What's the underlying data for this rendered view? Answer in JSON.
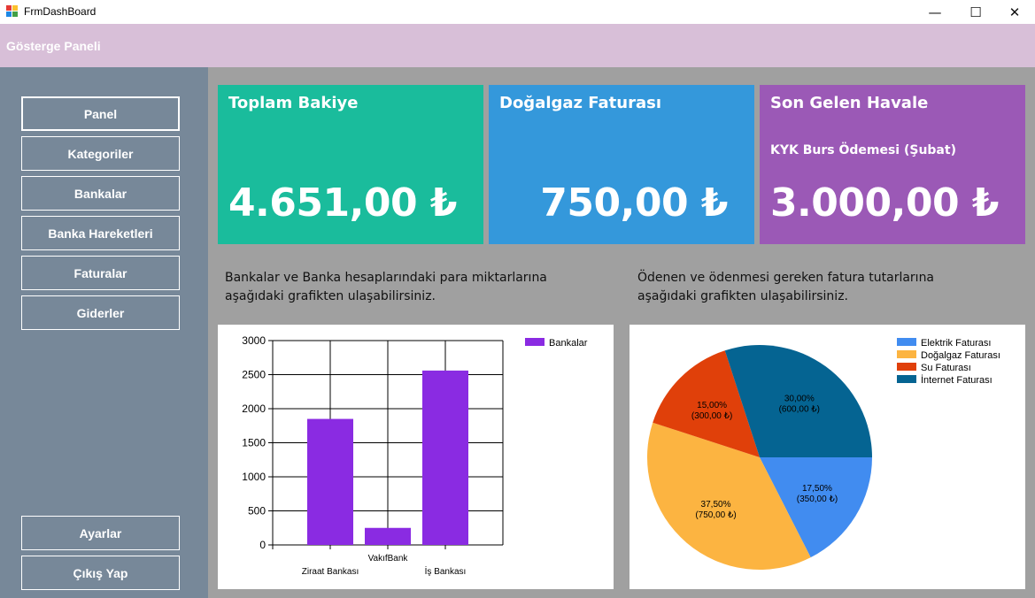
{
  "window": {
    "title": "FrmDashBoard",
    "minimize": "—",
    "maximize": "☐",
    "close": "✕"
  },
  "header": {
    "title": "Gösterge Paneli"
  },
  "sidebar": {
    "items": [
      {
        "label": "Panel"
      },
      {
        "label": "Kategoriler"
      },
      {
        "label": "Bankalar"
      },
      {
        "label": "Banka Hareketleri"
      },
      {
        "label": "Faturalar"
      },
      {
        "label": "Giderler"
      }
    ],
    "bottom": [
      {
        "label": "Ayarlar"
      },
      {
        "label": "Çıkış Yap"
      }
    ]
  },
  "cards": [
    {
      "title": "Toplam Bakiye",
      "subtitle": "",
      "value": "4.651,00 ₺",
      "color": "#1abc9c"
    },
    {
      "title": "Doğalgaz Faturası",
      "subtitle": "",
      "value": "750,00 ₺",
      "color": "#3498db"
    },
    {
      "title": "Son Gelen Havale",
      "subtitle": "KYK Burs Ödemesi (Şubat)",
      "value": "3.000,00 ₺",
      "color": "#9b59b6"
    }
  ],
  "descriptions": {
    "banks": [
      "Bankalar ve Banka hesaplarındaki para miktarlarına",
      "aşağıdaki grafikten ulaşabilirsiniz."
    ],
    "bills": [
      "Ödenen ve ödenmesi gereken fatura tutarlarına",
      "aşağıdaki grafikten ulaşabilirsiniz."
    ]
  },
  "chart_data": [
    {
      "type": "bar",
      "categories": [
        "Ziraat Bankası",
        "VakıfBank",
        "İş Bankası"
      ],
      "series": [
        {
          "name": "Bankalar",
          "values": [
            1850,
            250,
            2560
          ],
          "color": "#8a2be2"
        }
      ],
      "ylim": [
        0,
        3000
      ],
      "yticks": [
        0,
        500,
        1000,
        1500,
        2000,
        2500,
        3000
      ],
      "grid": true,
      "legend": "top-right"
    },
    {
      "type": "pie",
      "slices": [
        {
          "name": "Elektrik Faturası",
          "value": 350,
          "percent": "17,50%",
          "amount": "(350,00 ₺)",
          "color": "#418cf0"
        },
        {
          "name": "Doğalgaz Faturası",
          "value": 750,
          "percent": "37,50%",
          "amount": "(750,00 ₺)",
          "color": "#fcb441"
        },
        {
          "name": "Su Faturası",
          "value": 300,
          "percent": "15,00%",
          "amount": "(300,00 ₺)",
          "color": "#e0400a"
        },
        {
          "name": "İnternet Faturası",
          "value": 600,
          "percent": "30,00%",
          "amount": "(600,00 ₺)",
          "color": "#056492"
        }
      ],
      "legend": "top-right"
    }
  ]
}
